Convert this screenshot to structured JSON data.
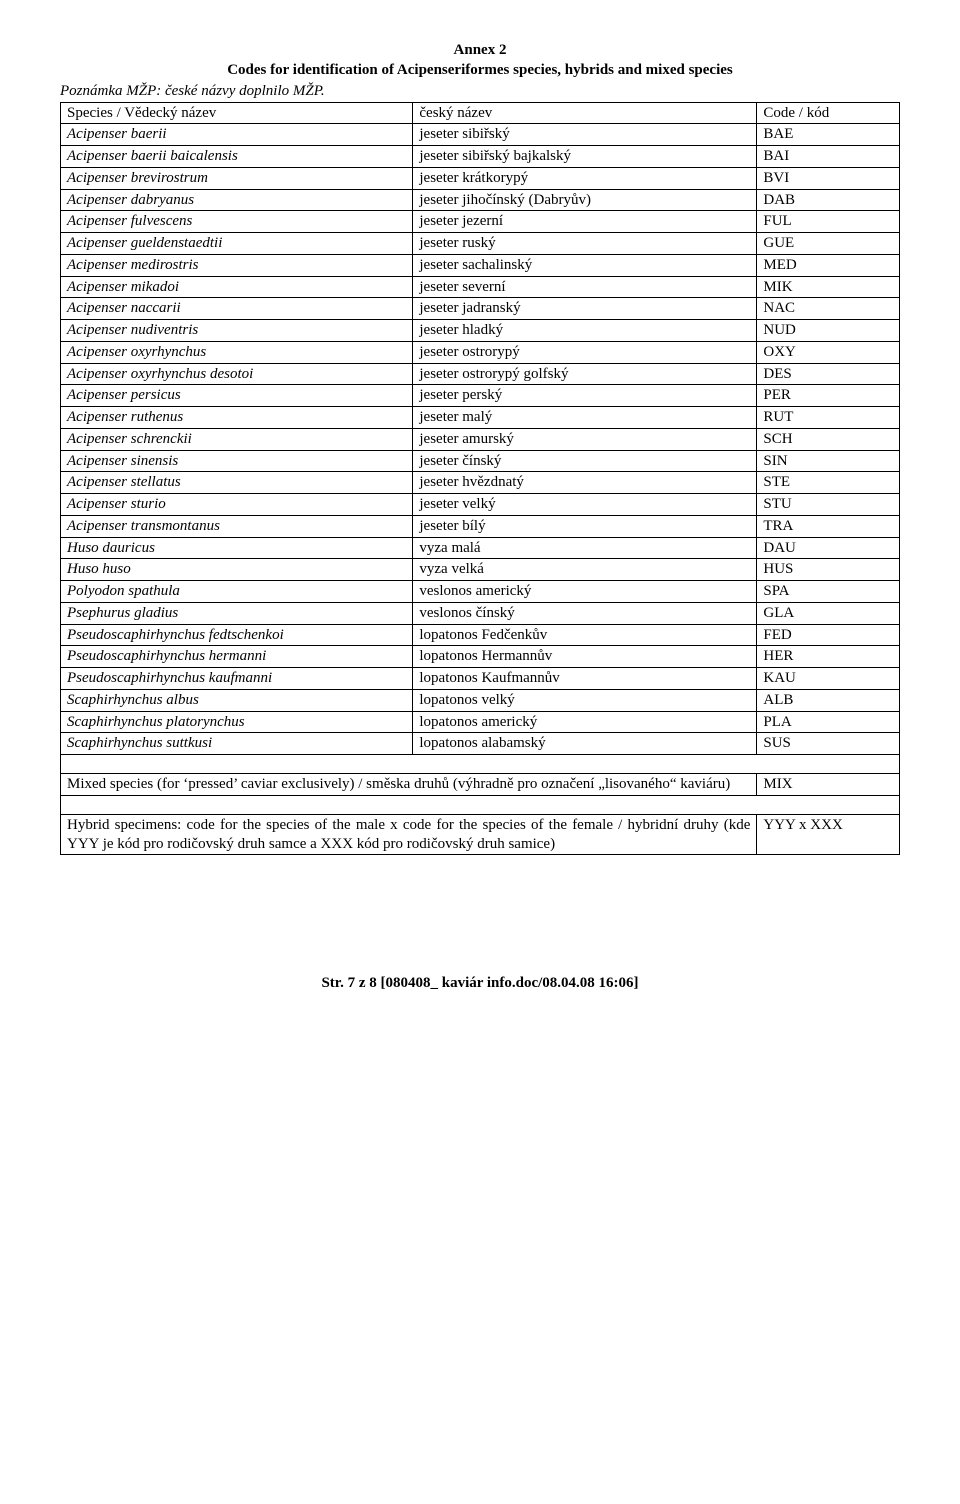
{
  "title_line1": "Annex 2",
  "title_line2": "Codes for identification of Acipenseriformes species, hybrids and mixed species",
  "note": "Poznámka MŽP: české názvy doplnilo MŽP.",
  "header": {
    "col1": "Species / Vědecký název",
    "col2": "český název",
    "col3": "Code / kód"
  },
  "rows": [
    {
      "s": "Acipenser baerii",
      "n": "jeseter sibiřský",
      "c": "BAE"
    },
    {
      "s": "Acipenser baerii baicalensis",
      "n": "jeseter sibiřský bajkalský",
      "c": "BAI"
    },
    {
      "s": "Acipenser brevirostrum",
      "n": "jeseter krátkorypý",
      "c": "BVI"
    },
    {
      "s": "Acipenser dabryanus",
      "n": "jeseter jihočínský (Dabryův)",
      "c": "DAB"
    },
    {
      "s": "Acipenser fulvescens",
      "n": "jeseter jezerní",
      "c": "FUL"
    },
    {
      "s": "Acipenser gueldenstaedtii",
      "n": "jeseter ruský",
      "c": "GUE"
    },
    {
      "s": "Acipenser medirostris",
      "n": "jeseter sachalinský",
      "c": "MED"
    },
    {
      "s": "Acipenser mikadoi",
      "n": "jeseter severní",
      "c": "MIK"
    },
    {
      "s": "Acipenser naccarii",
      "n": "jeseter jadranský",
      "c": "NAC"
    },
    {
      "s": "Acipenser nudiventris",
      "n": "jeseter hladký",
      "c": "NUD"
    },
    {
      "s": "Acipenser oxyrhynchus",
      "n": "jeseter ostrorypý",
      "c": "OXY"
    },
    {
      "s": "Acipenser oxyrhynchus desotoi",
      "n": "jeseter ostrorypý golfský",
      "c": "DES"
    },
    {
      "s": "Acipenser persicus",
      "n": "jeseter perský",
      "c": "PER"
    },
    {
      "s": "Acipenser ruthenus",
      "n": "jeseter malý",
      "c": "RUT"
    },
    {
      "s": "Acipenser schrenckii",
      "n": "jeseter amurský",
      "c": "SCH"
    },
    {
      "s": "Acipenser sinensis",
      "n": "jeseter čínský",
      "c": "SIN"
    },
    {
      "s": "Acipenser stellatus",
      "n": "jeseter hvězdnatý",
      "c": "STE"
    },
    {
      "s": "Acipenser sturio",
      "n": "jeseter velký",
      "c": "STU"
    },
    {
      "s": "Acipenser transmontanus",
      "n": "jeseter bílý",
      "c": "TRA"
    },
    {
      "s": "Huso dauricus",
      "n": "vyza malá",
      "c": "DAU"
    },
    {
      "s": "Huso huso",
      "n": "vyza velká",
      "c": "HUS"
    },
    {
      "s": "Polyodon spathula",
      "n": "veslonos americký",
      "c": "SPA"
    },
    {
      "s": "Psephurus gladius",
      "n": "veslonos čínský",
      "c": "GLA"
    },
    {
      "s": "Pseudoscaphirhynchus fedtschenkoi",
      "n": "lopatonos Fedčenkův",
      "c": "FED"
    },
    {
      "s": "Pseudoscaphirhynchus hermanni",
      "n": "lopatonos Hermannův",
      "c": "HER"
    },
    {
      "s": "Pseudoscaphirhynchus kaufmanni",
      "n": "lopatonos Kaufmannův",
      "c": "KAU"
    },
    {
      "s": "Scaphirhynchus albus",
      "n": "lopatonos velký",
      "c": "ALB"
    },
    {
      "s": "Scaphirhynchus platorynchus",
      "n": "lopatonos americký",
      "c": "PLA"
    },
    {
      "s": "Scaphirhynchus suttkusi",
      "n": "lopatonos alabamský",
      "c": "SUS"
    }
  ],
  "mixed": {
    "text": "Mixed species (for ‘pressed’ caviar exclusively) / směska druhů (výhradně pro označení „lisovaného“ kaviáru)",
    "code": "MIX"
  },
  "hybrid": {
    "text": "Hybrid specimens: code for the species of the male x code for the species of the female / hybridní druhy (kde YYY je kód pro rodičovský druh samce a XXX kód pro rodičovský druh samice)",
    "code": "YYY x XXX"
  },
  "footer": "Str. 7 z 8  [080408_ kaviár info.doc/08.04.08 16:06]"
}
